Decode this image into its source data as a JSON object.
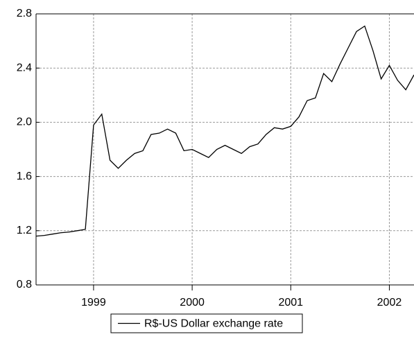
{
  "chart_data": {
    "type": "line",
    "x": [
      1998.4167,
      1998.5,
      1998.5833,
      1998.6667,
      1998.75,
      1998.8333,
      1998.9167,
      1999,
      1999.0833,
      1999.1667,
      1999.25,
      1999.3333,
      1999.4167,
      1999.5,
      1999.5833,
      1999.6667,
      1999.75,
      1999.8333,
      1999.9167,
      2000,
      2000.0833,
      2000.1667,
      2000.25,
      2000.3333,
      2000.4167,
      2000.5,
      2000.5833,
      2000.6667,
      2000.75,
      2000.8333,
      2000.9167,
      2001,
      2001.0833,
      2001.1667,
      2001.25,
      2001.3333,
      2001.4167,
      2001.5,
      2001.5833,
      2001.6667,
      2001.75,
      2001.8333,
      2001.9167,
      2002,
      2002.0833,
      2002.1667,
      2002.25
    ],
    "series": [
      {
        "name": "R$-US Dollar exchange rate",
        "color": "#000000",
        "values": [
          1.16,
          1.165,
          1.175,
          1.185,
          1.19,
          1.2,
          1.21,
          1.98,
          2.06,
          1.72,
          1.66,
          1.72,
          1.77,
          1.79,
          1.91,
          1.92,
          1.95,
          1.92,
          1.79,
          1.8,
          1.77,
          1.74,
          1.8,
          1.83,
          1.8,
          1.77,
          1.82,
          1.84,
          1.91,
          1.96,
          1.95,
          1.97,
          2.04,
          2.16,
          2.18,
          2.36,
          2.3,
          2.43,
          2.55,
          2.67,
          2.71,
          2.53,
          2.32,
          2.42,
          2.31,
          2.24,
          2.35
        ]
      }
    ],
    "xlim": [
      1998.4167,
      2002.25
    ],
    "xticks": [
      1999,
      2000,
      2001,
      2002
    ],
    "ylim": [
      0.8,
      2.8
    ],
    "yticks": [
      0.8,
      1.2,
      1.6,
      {
        "value": 2,
        "label": "2.0"
      },
      2.4,
      2.8
    ],
    "grid": true,
    "legend": "bottom"
  }
}
